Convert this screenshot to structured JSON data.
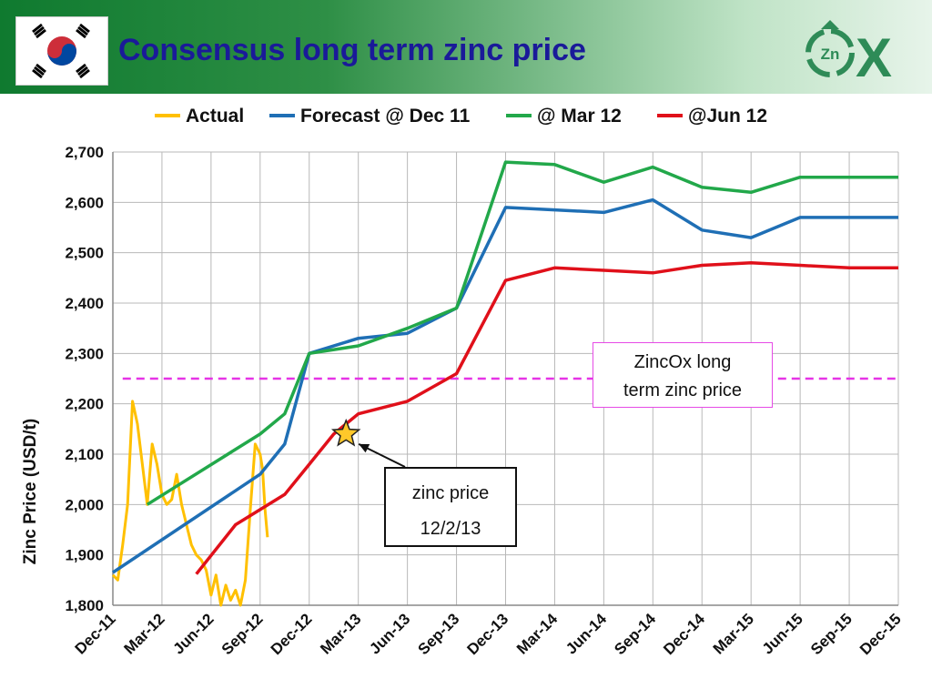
{
  "header": {
    "title": "Consensus long term zinc price",
    "flag_icon": "south-korea-flag-icon",
    "logo": {
      "icon": "zincox-logo-icon",
      "badge_text": "Zn",
      "text": "X"
    }
  },
  "colors": {
    "actual": "#ffc000",
    "dec11": "#1f6fb5",
    "mar12": "#22a84a",
    "jun12": "#e0101a",
    "longterm": "#e633e6",
    "title": "#1a1a99"
  },
  "chart_data": {
    "type": "line",
    "title": "",
    "xlabel": "",
    "ylabel": "Zinc Price (USD/t)",
    "ylim": [
      1800,
      2700
    ],
    "yticks": [
      1800,
      1900,
      2000,
      2100,
      2200,
      2300,
      2400,
      2500,
      2600,
      2700
    ],
    "ytick_labels": [
      "1,800",
      "1,900",
      "2,000",
      "2,100",
      "2,200",
      "2,300",
      "2,400",
      "2,500",
      "2,600",
      "2,700"
    ],
    "xticks": [
      "Dec-11",
      "Mar-12",
      "Jun-12",
      "Sep-12",
      "Dec-12",
      "Mar-13",
      "Jun-13",
      "Sep-13",
      "Dec-13",
      "Mar-14",
      "Jun-14",
      "Sep-14",
      "Dec-14",
      "Mar-15",
      "Jun-15",
      "Sep-15",
      "Dec-15"
    ],
    "grid": true,
    "legend_position": "top",
    "series": [
      {
        "name": "Actual",
        "x": [
          0,
          0.1,
          0.2,
          0.3,
          0.4,
          0.5,
          0.6,
          0.7,
          0.8,
          0.9,
          1.0,
          1.1,
          1.2,
          1.3,
          1.4,
          1.5,
          1.6,
          1.7,
          1.8,
          1.9,
          2.0,
          2.1,
          2.2,
          2.3,
          2.4,
          2.5,
          2.6,
          2.7,
          2.8,
          2.9,
          3.0,
          3.05,
          3.1,
          3.15
        ],
        "values": [
          1860,
          1850,
          1920,
          2000,
          2205,
          2160,
          2080,
          2000,
          2120,
          2080,
          2020,
          2000,
          2010,
          2060,
          2000,
          1960,
          1920,
          1900,
          1890,
          1870,
          1820,
          1860,
          1800,
          1840,
          1810,
          1830,
          1800,
          1850,
          1990,
          2120,
          2100,
          2070,
          1990,
          1935
        ]
      },
      {
        "name": "Forecast @ Dec 11",
        "x": [
          0,
          3.0,
          3.5,
          4.0,
          5.0,
          6.0,
          7.0,
          8.0,
          9.0,
          10.0,
          11.0,
          12.0,
          13.0,
          14.0,
          15.0,
          16.0
        ],
        "values": [
          1865,
          2060,
          2120,
          2300,
          2330,
          2340,
          2390,
          2590,
          2585,
          2580,
          2605,
          2545,
          2530,
          2570,
          2570,
          2570
        ]
      },
      {
        "name": "@ Mar 12",
        "x": [
          0.7,
          3.0,
          3.5,
          4.0,
          5.0,
          6.0,
          7.0,
          8.0,
          9.0,
          10.0,
          11.0,
          12.0,
          13.0,
          14.0,
          15.0,
          16.0
        ],
        "values": [
          2000,
          2140,
          2180,
          2300,
          2315,
          2350,
          2390,
          2680,
          2675,
          2640,
          2670,
          2630,
          2620,
          2650,
          2650,
          2650
        ]
      },
      {
        "name": "@Jun 12",
        "x": [
          1.7,
          2.5,
          3.5,
          4.0,
          4.5,
          5.0,
          6.0,
          7.0,
          8.0,
          9.0,
          10.0,
          11.0,
          12.0,
          13.0,
          14.0,
          15.0,
          16.0
        ],
        "values": [
          1862,
          1960,
          2020,
          2080,
          2140,
          2180,
          2205,
          2260,
          2445,
          2470,
          2465,
          2460,
          2475,
          2480,
          2475,
          2470,
          2470
        ]
      }
    ],
    "reference_line": {
      "value": 2250
    },
    "annotations": [
      {
        "text_lines": [
          "ZincOx long",
          "term zinc price"
        ]
      },
      {
        "text_lines": [
          "zinc price",
          "12/2/13"
        ],
        "marker": "star-icon",
        "x": 4.75,
        "y": 2140
      }
    ]
  }
}
